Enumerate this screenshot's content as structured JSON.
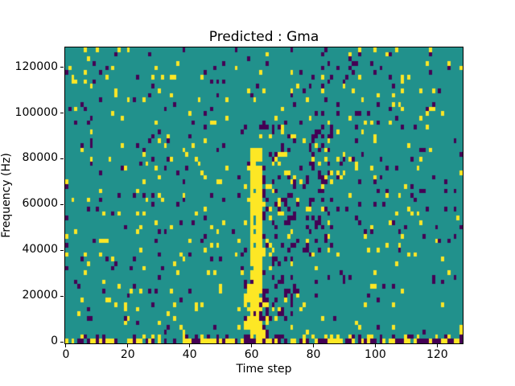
{
  "chart_data": {
    "type": "heatmap",
    "title": "Predicted : Gma",
    "xlabel": "Time step",
    "ylabel": "Frequency (Hz)",
    "xlim": [
      -0.5,
      128.5
    ],
    "ylim": [
      -1000,
      129000
    ],
    "x_ticks": [
      0,
      20,
      40,
      60,
      80,
      100,
      120
    ],
    "y_ticks": [
      0,
      20000,
      40000,
      60000,
      80000,
      100000,
      120000
    ],
    "grid": {
      "cols": 129,
      "rows": 65,
      "x_step": 1,
      "y_step_hz": 2000
    },
    "colormap": "viridis",
    "colors": {
      "mid": "#21918c",
      "high": "#fde725",
      "low": "#440154"
    },
    "grid_on": false,
    "legend": "none",
    "noise": {
      "seed": 42,
      "high_density": 0.035,
      "low_density": 0.038
    },
    "features": [
      {
        "name": "bottom-activity-row",
        "c0": 0,
        "c1": 128,
        "r0": 0,
        "r1": 0,
        "high": 0.45,
        "low": 0.35
      },
      {
        "name": "bottom-activity-row-2",
        "c0": 0,
        "c1": 128,
        "r0": 1,
        "r1": 1,
        "high": 0.12,
        "low": 0.15
      },
      {
        "name": "main-yellow-column",
        "c0": 60,
        "c1": 63,
        "r0": 1,
        "r1": 42,
        "high": 0.92,
        "low": 0.02
      },
      {
        "name": "yellow-column-base",
        "c0": 58,
        "c1": 65,
        "r0": 0,
        "r1": 12,
        "high": 0.45,
        "low": 0.1
      },
      {
        "name": "post-column-purple-cluster",
        "c0": 64,
        "c1": 74,
        "r0": 5,
        "r1": 48,
        "high": 0.05,
        "low": 0.16
      },
      {
        "name": "purple-cluster-right",
        "c0": 78,
        "c1": 86,
        "r0": 20,
        "r1": 50,
        "high": 0.06,
        "low": 0.12
      }
    ]
  }
}
